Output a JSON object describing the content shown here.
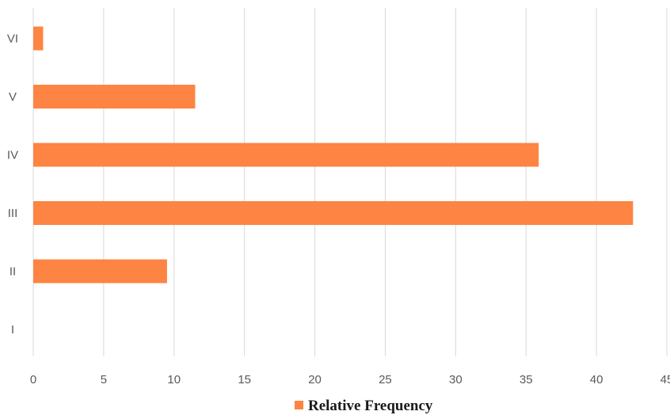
{
  "chart_data": {
    "type": "bar",
    "orientation": "horizontal",
    "title": "",
    "xlabel": "",
    "ylabel": "",
    "categories": [
      "I",
      "II",
      "III",
      "IV",
      "V",
      "VI"
    ],
    "series": [
      {
        "name": "Relative Frequency",
        "values": [
          0,
          9.5,
          42.6,
          35.9,
          11.5,
          0.7
        ],
        "color": "#fd8442"
      }
    ],
    "xlim": [
      0,
      45
    ],
    "xticks": [
      0,
      5,
      10,
      15,
      20,
      25,
      30,
      35,
      40,
      45
    ],
    "grid": "vertical",
    "legend": "bottom-center"
  }
}
